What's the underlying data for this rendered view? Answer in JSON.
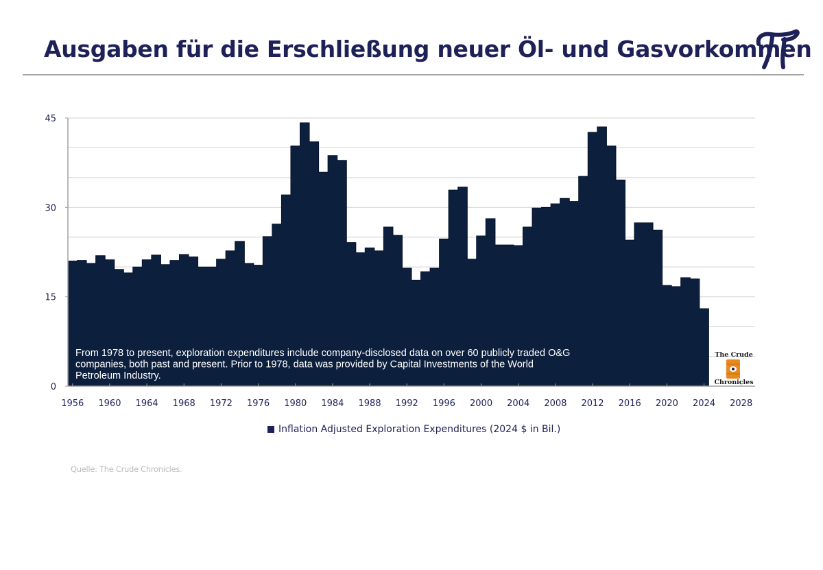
{
  "header": {
    "title": "Ausgaben für die Erschließung neuer Öl- und Gasvorkommen",
    "logo_icon": "pi-logo-icon"
  },
  "colors": {
    "title": "#1e2157",
    "bars": "#0c1f3d",
    "gridline": "#d9d9d9",
    "rule": "#a5a5a5",
    "source_text": "#bdbdbd",
    "barrel": "#e8891f"
  },
  "chart_data": {
    "type": "bar",
    "title": "",
    "xlabel": "",
    "ylabel": "",
    "ylim": [
      0,
      45
    ],
    "xlim": [
      1956,
      2030
    ],
    "y_ticks": [
      0,
      15,
      30,
      45
    ],
    "y_gridlines_every": 5,
    "x_ticks": [
      1956,
      1960,
      1964,
      1968,
      1972,
      1976,
      1980,
      1984,
      1988,
      1992,
      1996,
      2000,
      2004,
      2008,
      2012,
      2016,
      2020,
      2024,
      2028
    ],
    "grid": true,
    "legend_position": "bottom-center",
    "series": [
      {
        "name": "Inflation Adjusted Exploration Expenditures (2024 $ in Bil.)",
        "x": [
          1956,
          1957,
          1958,
          1959,
          1960,
          1961,
          1962,
          1963,
          1964,
          1965,
          1966,
          1967,
          1968,
          1969,
          1970,
          1971,
          1972,
          1973,
          1974,
          1975,
          1976,
          1977,
          1978,
          1979,
          1980,
          1981,
          1982,
          1983,
          1984,
          1985,
          1986,
          1987,
          1988,
          1989,
          1990,
          1991,
          1992,
          1993,
          1994,
          1995,
          1996,
          1997,
          1998,
          1999,
          2000,
          2001,
          2002,
          2003,
          2004,
          2005,
          2006,
          2007,
          2008,
          2009,
          2010,
          2011,
          2012,
          2013,
          2014,
          2015,
          2016,
          2017,
          2018,
          2019,
          2020,
          2021,
          2022,
          2023,
          2024
        ],
        "values": [
          21.0,
          21.1,
          20.6,
          21.9,
          21.2,
          19.6,
          19.0,
          20.0,
          21.2,
          22.0,
          20.4,
          21.1,
          22.1,
          21.7,
          20.0,
          20.0,
          21.3,
          22.7,
          24.3,
          20.6,
          20.3,
          25.1,
          27.2,
          32.1,
          40.3,
          44.2,
          41.0,
          35.9,
          38.7,
          37.9,
          24.1,
          22.4,
          23.2,
          22.7,
          26.7,
          25.3,
          19.8,
          17.8,
          19.2,
          19.8,
          24.7,
          32.9,
          33.4,
          21.3,
          25.2,
          28.1,
          23.7,
          23.7,
          23.6,
          26.7,
          29.9,
          30.0,
          30.6,
          31.5,
          31.0,
          35.2,
          42.6,
          43.5,
          40.3,
          34.6,
          24.5,
          27.4,
          27.4,
          26.2,
          16.9,
          16.7,
          18.2,
          18.0,
          13.0
        ]
      }
    ],
    "annotation": [
      "From 1978 to present, exploration expenditures include company-disclosed data on over 60 publicly traded O&G",
      "companies, both past and present. Prior to 1978, data was provided by Capital Investments of the World",
      "Petroleum Industry."
    ],
    "watermark": {
      "top": "The Crude",
      "bottom": "Chronicles",
      "icon": "oil-barrel-icon"
    }
  },
  "legend": {
    "label": "Inflation Adjusted Exploration Expenditures (2024 $ in Bil.)"
  },
  "footer": {
    "source": "Quelle: The Crude Chronicles."
  }
}
